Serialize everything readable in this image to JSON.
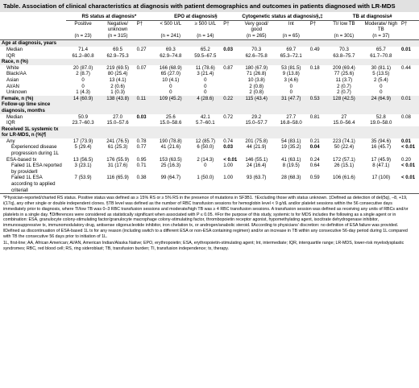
{
  "title": "Table. Association of clinical characteristics at diagnosis with patient demographics and outcomes in patients diagnosed with LR-MDS",
  "groups": {
    "rs": "RS status at diagnosis*",
    "epo": "EPO at diagnosis§",
    "cyto": "Cytogenetic status at diagnosis§,‡",
    "tb": "TB at diagnosis#"
  },
  "sub": {
    "positive": "Positive",
    "negative": "Negative/ unknown",
    "p": "P†",
    "epo_lo": "< 500 U/L",
    "epo_hi": "≥ 500 U/L",
    "very_good": "Very good/ good",
    "int": "Int",
    "ti": "TI/ low TB",
    "mod": "Moderate/ high TB"
  },
  "n": [
    "(n = 23)",
    "(n = 315)",
    "(n = 241)",
    "(n = 14)",
    "(n = 265)",
    "(n = 65)",
    "(n = 301)",
    "(n = 37)"
  ],
  "rows": [
    {
      "label": "Age at diagnosis, years",
      "type": "sec"
    },
    {
      "label": "Median",
      "type": "ind",
      "v": [
        "71.4",
        "69.5",
        "0.27",
        "69.3",
        "65.2",
        "0.03",
        "70.3",
        "69.7",
        "0.49",
        "70.3",
        "65.7",
        "0.01"
      ],
      "bold": [
        5,
        11
      ]
    },
    {
      "label": "IQR",
      "type": "ind",
      "v": [
        "61.2–80.8",
        "62.9–75.3",
        "",
        "62.9–74.8",
        "59.5–67.5",
        "",
        "62.6–75.8",
        "65.3–72.1",
        "",
        "63.8–75.7",
        "61.7–70.8",
        ""
      ]
    },
    {
      "label": "Race, n (%)",
      "type": "sec"
    },
    {
      "label": "White",
      "type": "ind",
      "v": [
        "20 (87.0)",
        "219 (69.5)",
        "0.07",
        "166 (68.9)",
        "11 (78.6)",
        "0.87",
        "180 (67.9)",
        "53 (81.5)",
        "0.18",
        "209 (69.4)",
        "30 (81.1)",
        "0.44"
      ]
    },
    {
      "label": "Black/AA",
      "type": "ind",
      "v": [
        "2 (8.7)",
        "80 (25.4)",
        "",
        "65 (27.0)",
        "3 (21.4)",
        "",
        "71 (26.8)",
        "9 (13.8)",
        "",
        "77 (25.6)",
        "5 (13.5)",
        ""
      ]
    },
    {
      "label": "Asian",
      "type": "ind",
      "v": [
        "0",
        "13 (4.1)",
        "",
        "10 (4.1)",
        "0",
        "",
        "10 (3.8)",
        "3 (4.6)",
        "",
        "11 (3.7)",
        "2 (5.4)",
        ""
      ]
    },
    {
      "label": "AI/AN",
      "type": "ind",
      "v": [
        "0",
        "2 (0.6)",
        "",
        "0",
        "0",
        "",
        "2 (0.8)",
        "0",
        "",
        "2 (0.7)",
        "0",
        ""
      ]
    },
    {
      "label": "Unknown",
      "type": "ind",
      "v": [
        "1 (4.3)",
        "1 (0.3)",
        "",
        "0",
        "0",
        "",
        "2 (0.8)",
        "0",
        "",
        "2 (0.7)",
        "0",
        ""
      ]
    },
    {
      "label": "Female, n (%)",
      "type": "sec",
      "v": [
        "14 (60.9)",
        "138 (43.8)",
        "0.11",
        "109 (45.2)",
        "4 (28.6)",
        "0.22",
        "115 (43.4)",
        "31 (47.7)",
        "0.53",
        "128 (42.5)",
        "24 (64.9)",
        "0.01"
      ],
      "bold": [
        11
      ]
    },
    {
      "label": "Follow-up time since diagnosis, months",
      "type": "sec"
    },
    {
      "label": "Median",
      "type": "ind",
      "v": [
        "50.9",
        "27.0",
        "0.03",
        "25.6",
        "42.1",
        "0.72",
        "29.2",
        "27.7",
        "0.81",
        "27",
        "52.8",
        "0.08"
      ],
      "bold": [
        2
      ]
    },
    {
      "label": "IQR",
      "type": "ind",
      "v": [
        "23.7–60.3",
        "15.0–57.6",
        "",
        "15.0–58.6",
        "5.7–60.1",
        "",
        "15.0–57.7",
        "16.8–58.0",
        "",
        "15.0–56.4",
        "19.0–58.0",
        ""
      ]
    },
    {
      "label": "Received 1L systemic tx for LR-MDS, n (%)¶",
      "type": "sec"
    },
    {
      "label": "Any",
      "type": "ind",
      "v": [
        "17 (73.9)",
        "241 (76.5)",
        "0.78",
        "190 (78.8)",
        "12 (85.7)",
        "0.74",
        "201 (75.8)",
        "54 (83.1)",
        "0.21",
        "223 (74.1)",
        "35 (94.6)",
        "0.01"
      ],
      "bold": [
        11
      ]
    },
    {
      "label": "Experienced disease progression during 1L",
      "type": "ind2",
      "v": [
        "5 (29.4)",
        "61 (25.3)",
        "0.77",
        "41 (21.6)",
        "6 (50.0)",
        "0.03",
        "44 (21.9)",
        "19 (35.2)",
        "0.04",
        "50 (22.4)",
        "16 (45.7)",
        "< 0.01"
      ],
      "bold": [
        5,
        8,
        11
      ]
    },
    {
      "label": "ESA-based tx",
      "type": "ind",
      "v": [
        "13 (56.5)",
        "176 (55.9)",
        "0.95",
        "153 (63.5)",
        "2 (14.3)",
        "< 0.01",
        "146 (55.1)",
        "41 (63.1)",
        "0.24",
        "172 (57.1)",
        "17 (45.9)",
        "0.20"
      ],
      "bold": [
        5
      ]
    },
    {
      "label": "Failed 1L ESA reported by provider‖",
      "type": "ind2",
      "v": [
        "3 (23.1)",
        "31 (17.6)",
        "0.71",
        "25 (16.3)",
        "0",
        "1.00",
        "24 (16.4)",
        "8 (19.5)",
        "0.64",
        "26 (15.1)",
        "8 (47.1)",
        "< 0.01"
      ],
      "bold": [
        11
      ]
    },
    {
      "label": "Failed 1L ESA according to applied criteria‖",
      "type": "ind2",
      "v": [
        "7 (53.9)",
        "116 (65.9)",
        "0.38",
        "99 (64.7)",
        "1 (50.0)",
        "1.00",
        "93 (63.7)",
        "28 (68.3)",
        "0.59",
        "106 (61.6)",
        "17 (100)",
        "< 0.01"
      ],
      "bold": [
        11
      ]
    }
  ],
  "footnotes": [
    "*Physician-reported/charted RS status. Positive status was defined as ≥ 15% RS or ≥ 5% RS in the presence of mutations in SF3B1. †Excluding those with status unknown. ‡Defined as detection of del(5q), –8, +19, i(17q), any other single or double independent clones. §TB level was defined as the number of RBC transfusion sessions for hemoglobin level < 9 g/dL and/or platelet sessions within the 56 consecutive days immediately prior to diagnosis, where TI/low TB was 0–3 RBC transfusion sessions and moderate/high TB was ≥ 4 RBC transfusion sessions. A transfusion session was defined as receiving any units of RBCs and/or platelets in a single day. ¶Differences were considered as statistically significant when associated with P ≤ 0.05. #For the purpose of this study, systemic tx for MDS includes the following as a single agent or in combination: ESA, granulocyte colony-stimulating factor/granulocyte macrophage colony-stimulating factor, thrombopoietin receptor agonist, hypomethylating agent, isocitrate dehydrogenase inhibitor, immunosuppressive tx, immunomodulatory drug, antisense oligonucleotide inhibitor, iron chelation tx, or androgen/anabolic steroid. ‖According to physicians' discretion: no definition of ESA failure was provided. ‖Defined as discontinuation of ESA-based 1L tx for any reason (including switch to a different ESA or non-ESA containing regimen) and/or an increase in TB within any consecutive 56-day period during 1L compared with TB the consecutive 56 days prior to initiation of 1L.",
    "1L, first-line; AA, African American; AI/AN, American Indian/Alaska Native; EPO, erythropoietin; ESA, erythropoietin-stimulating agent; Int, intermediate; IQR, interquartile range; LR-MDS, lower-risk myelodysplastic syndromes; RBC, red blood cell; RS, ring sideroblast; TB, transfusion burden; TI, transfusion independence; tx, therapy."
  ]
}
